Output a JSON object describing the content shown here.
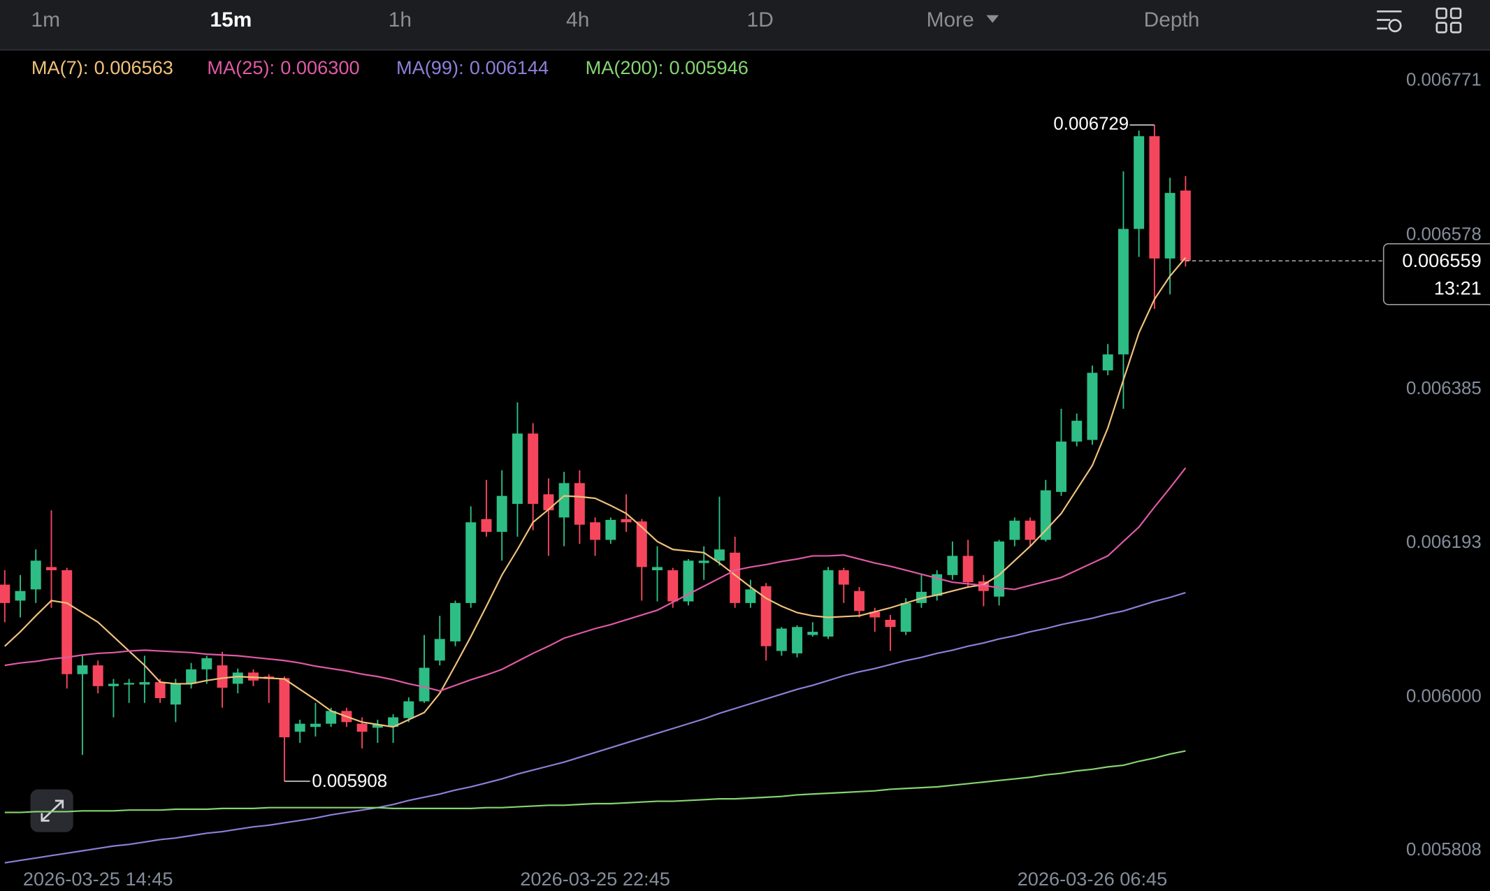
{
  "toolbar": {
    "tabs": [
      "1m",
      "15m",
      "1h",
      "4h",
      "1D",
      "More",
      "Depth"
    ],
    "active": 1
  },
  "chart_data": {
    "type": "candlestick",
    "categories": [
      null,
      null,
      null,
      null,
      null,
      null,
      "2026-03-25 14:45",
      null,
      null,
      null,
      null,
      null,
      null,
      null,
      null,
      null,
      null,
      null,
      null,
      null,
      null,
      null,
      null,
      null,
      null,
      null,
      null,
      null,
      null,
      null,
      null,
      null,
      null,
      null,
      null,
      null,
      null,
      null,
      "2026-03-25 22:45",
      null,
      null,
      null,
      null,
      null,
      null,
      null,
      null,
      null,
      null,
      null,
      null,
      null,
      null,
      null,
      null,
      null,
      null,
      null,
      null,
      null,
      null,
      null,
      null,
      null,
      null,
      null,
      null,
      null,
      null,
      null,
      "2026-03-26 06:45",
      null,
      null,
      null,
      null,
      null,
      null
    ],
    "open": [
      0.006154,
      0.006134,
      0.006148,
      0.006176,
      0.006172,
      0.006042,
      0.006053,
      0.006027,
      0.006029,
      0.006029,
      0.006032,
      0.006004,
      0.00603,
      0.006048,
      0.006053,
      0.00603,
      0.006044,
      0.006039,
      0.006037,
      0.00597,
      0.005976,
      0.00598,
      0.005996,
      0.00598,
      0.005975,
      0.005976,
      0.005987,
      0.006008,
      0.006059,
      0.006083,
      0.006131,
      0.006236,
      0.00622,
      0.006255,
      0.006343,
      0.006267,
      0.006238,
      0.006281,
      0.006232,
      0.00621,
      0.006236,
      0.006233,
      0.006172,
      0.006172,
      0.006133,
      0.006181,
      0.006184,
      0.006194,
      0.006131,
      0.006152,
      0.006071,
      0.006068,
      0.006091,
      0.006089,
      0.006172,
      0.006146,
      0.00612,
      0.00611,
      0.006095,
      0.006131,
      0.00614,
      0.006166,
      0.00619,
      0.006158,
      0.006139,
      0.00621,
      0.006234,
      0.00621,
      0.00627,
      0.006333,
      0.006335,
      0.006422,
      0.006442,
      0.006599,
      0.006715,
      0.006562,
      0.006647
    ],
    "high": [
      0.006172,
      0.006166,
      0.006198,
      0.006247,
      0.006175,
      0.006065,
      0.006059,
      0.006036,
      0.006036,
      0.006065,
      0.006036,
      0.006036,
      0.006056,
      0.006065,
      0.00607,
      0.006049,
      0.006048,
      0.006042,
      0.006039,
      0.005985,
      0.006006,
      0.006,
      0.006,
      0.005988,
      0.005985,
      0.005992,
      0.006013,
      0.006091,
      0.006115,
      0.006134,
      0.006252,
      0.006285,
      0.006297,
      0.006382,
      0.006356,
      0.006287,
      0.006295,
      0.006297,
      0.006238,
      0.006238,
      0.006267,
      0.006236,
      0.006202,
      0.006175,
      0.006186,
      0.006202,
      0.006264,
      0.006214,
      0.00616,
      0.006156,
      0.006101,
      0.006103,
      0.006107,
      0.006176,
      0.006175,
      0.006151,
      0.006125,
      0.006116,
      0.006137,
      0.006166,
      0.006172,
      0.006208,
      0.00621,
      0.006166,
      0.00621,
      0.006238,
      0.006238,
      0.006285,
      0.006374,
      0.006368,
      0.006428,
      0.006455,
      0.006671,
      0.006722,
      0.006729,
      0.006663,
      0.006665
    ],
    "low": [
      0.006107,
      0.006113,
      0.006131,
      0.006125,
      0.006024,
      0.005941,
      0.006018,
      0.005988,
      0.006006,
      0.006006,
      0.006006,
      0.005982,
      0.006024,
      0.00603,
      0.006,
      0.006018,
      0.006027,
      0.006006,
      0.005908,
      0.005956,
      0.005964,
      0.005976,
      0.005976,
      0.005949,
      0.005956,
      0.005956,
      0.005982,
      0.006006,
      0.006053,
      0.006077,
      0.006125,
      0.006214,
      0.006184,
      0.006214,
      0.006222,
      0.00619,
      0.006202,
      0.006205,
      0.00619,
      0.006205,
      0.00622,
      0.006134,
      0.006133,
      0.006125,
      0.006128,
      0.00616,
      0.006178,
      0.006125,
      0.006125,
      0.006059,
      0.006065,
      0.006063,
      0.006089,
      0.006086,
      0.006131,
      0.006113,
      0.006095,
      0.006071,
      0.006091,
      0.006125,
      0.006134,
      0.00616,
      0.006151,
      0.006127,
      0.006128,
      0.006202,
      0.006202,
      0.006208,
      0.006265,
      0.006327,
      0.006329,
      0.006416,
      0.006374,
      0.006564,
      0.006499,
      0.006517,
      0.006552
    ],
    "close": [
      0.006131,
      0.006146,
      0.006184,
      0.006172,
      0.006042,
      0.006053,
      0.006027,
      0.00603,
      0.006031,
      0.006032,
      0.006012,
      0.00603,
      0.006048,
      0.006062,
      0.006025,
      0.006044,
      0.006034,
      0.006036,
      0.005963,
      0.00598,
      0.00598,
      0.005996,
      0.005982,
      0.00597,
      0.005979,
      0.005988,
      0.006008,
      0.00605,
      0.006086,
      0.006131,
      0.006232,
      0.00622,
      0.006265,
      0.006343,
      0.006255,
      0.006247,
      0.006281,
      0.006229,
      0.00621,
      0.006235,
      0.006232,
      0.006176,
      0.006176,
      0.006133,
      0.006184,
      0.006184,
      0.006198,
      0.006131,
      0.006148,
      0.006077,
      0.006099,
      0.006101,
      0.006095,
      0.006172,
      0.006154,
      0.006121,
      0.006113,
      0.006101,
      0.006131,
      0.006145,
      0.006167,
      0.00619,
      0.006157,
      0.006146,
      0.006208,
      0.006234,
      0.00621,
      0.006272,
      0.006333,
      0.006359,
      0.006419,
      0.006442,
      0.006599,
      0.006715,
      0.006562,
      0.006644,
      0.006559
    ],
    "up_color": "#2ebd85",
    "down_color": "#f6465d",
    "series": [
      {
        "name": "MA(7):",
        "color": "#f0c27b",
        "values": [
          0.006077,
          0.006095,
          0.006115,
          0.006134,
          0.006131,
          0.006119,
          0.006107,
          0.006089,
          0.006071,
          0.006053,
          0.006032,
          0.00603,
          0.00603,
          0.006034,
          0.006037,
          0.006039,
          0.006038,
          0.006037,
          0.006036,
          0.006023,
          0.00601,
          0.005996,
          0.005989,
          0.005982,
          0.005979,
          0.005976,
          0.005985,
          0.005994,
          0.006018,
          0.006053,
          0.006089,
          0.006127,
          0.006166,
          0.006198,
          0.006232,
          0.006248,
          0.006265,
          0.006264,
          0.006262,
          0.006253,
          0.006243,
          0.006226,
          0.006208,
          0.006198,
          0.006196,
          0.006194,
          0.006181,
          0.006166,
          0.006151,
          0.006137,
          0.006127,
          0.006119,
          0.006115,
          0.006113,
          0.006114,
          0.006115,
          0.00612,
          0.006125,
          0.006131,
          0.006137,
          0.006141,
          0.006146,
          0.006151,
          0.006154,
          0.006166,
          0.006184,
          0.006202,
          0.006222,
          0.006243,
          0.006273,
          0.006303,
          0.00635,
          0.00641,
          0.006469,
          0.006511,
          0.00654,
          0.006563
        ]
      },
      {
        "name": "MA(25):",
        "color": "#e05aa6",
        "values": [
          0.006053,
          0.006056,
          0.006058,
          0.006061,
          0.006063,
          0.006066,
          0.006068,
          0.006069,
          0.006071,
          0.006072,
          0.006071,
          0.00607,
          0.006069,
          0.006067,
          0.006066,
          0.006065,
          0.006063,
          0.006061,
          0.006059,
          0.006056,
          0.006052,
          0.006049,
          0.006046,
          0.006042,
          0.006039,
          0.006035,
          0.00603,
          0.006026,
          0.006021,
          0.006028,
          0.006035,
          0.006041,
          0.006048,
          0.006058,
          0.006068,
          0.006077,
          0.006087,
          0.006093,
          0.006099,
          0.006104,
          0.00611,
          0.006116,
          0.006122,
          0.006132,
          0.006142,
          0.006152,
          0.006162,
          0.006172,
          0.006176,
          0.006179,
          0.006183,
          0.006186,
          0.00619,
          0.00619,
          0.006191,
          0.006186,
          0.006181,
          0.006177,
          0.006172,
          0.006167,
          0.006162,
          0.006157,
          0.006155,
          0.006153,
          0.00615,
          0.006148,
          0.006153,
          0.006158,
          0.006163,
          0.006172,
          0.006181,
          0.00619,
          0.006208,
          0.006226,
          0.006251,
          0.006275,
          0.0063
        ],
        "value_labels": [
          null,
          null,
          null,
          null,
          null,
          null,
          null,
          null,
          null,
          null,
          null,
          null,
          null,
          null,
          null,
          null,
          null,
          null,
          null,
          null,
          null,
          null,
          null,
          null,
          null,
          null,
          null,
          null,
          null,
          null,
          null,
          null,
          null,
          null,
          null,
          null,
          null,
          null,
          null,
          null,
          null,
          null,
          null,
          null,
          null,
          null,
          null,
          null,
          null,
          null,
          null,
          null,
          null,
          null,
          null,
          null,
          null,
          null,
          null,
          null,
          null,
          null,
          null,
          null,
          null,
          null,
          null,
          null,
          null,
          null,
          null,
          null,
          null,
          null,
          null,
          null,
          "0.006300"
        ]
      },
      {
        "name": "MA(99):",
        "color": "#8d80d8",
        "values": [
          0.005806,
          0.005809,
          0.005812,
          0.005815,
          0.005818,
          0.005821,
          0.005824,
          0.005827,
          0.005829,
          0.005832,
          0.005835,
          0.005837,
          0.00584,
          0.005843,
          0.005845,
          0.005848,
          0.005851,
          0.005853,
          0.005856,
          0.005859,
          0.005862,
          0.005866,
          0.005869,
          0.005872,
          0.005875,
          0.005879,
          0.005884,
          0.005888,
          0.005892,
          0.005897,
          0.005901,
          0.005906,
          0.005911,
          0.005917,
          0.005922,
          0.005927,
          0.005932,
          0.005938,
          0.005944,
          0.00595,
          0.005956,
          0.005962,
          0.005968,
          0.005974,
          0.00598,
          0.005986,
          0.005993,
          0.005999,
          0.006005,
          0.006011,
          0.006017,
          0.006023,
          0.006028,
          0.006034,
          0.00604,
          0.006045,
          0.006049,
          0.006054,
          0.006059,
          0.006063,
          0.006068,
          0.006072,
          0.006077,
          0.006081,
          0.006086,
          0.00609,
          0.006095,
          0.006099,
          0.006104,
          0.006108,
          0.006112,
          0.006117,
          0.006121,
          0.006127,
          0.006133,
          0.006138,
          0.006144
        ]
      },
      {
        "name": "MA(200):",
        "color": "#86d472",
        "values": [
          0.005869,
          0.005869,
          0.00587,
          0.00587,
          0.00587,
          0.005871,
          0.005871,
          0.005871,
          0.005872,
          0.005872,
          0.005872,
          0.005873,
          0.005873,
          0.005873,
          0.005874,
          0.005874,
          0.005874,
          0.005875,
          0.005875,
          0.005875,
          0.005875,
          0.005875,
          0.005875,
          0.005875,
          0.005875,
          0.005874,
          0.005874,
          0.005874,
          0.005874,
          0.005874,
          0.005874,
          0.005875,
          0.005875,
          0.005876,
          0.005877,
          0.005878,
          0.005878,
          0.005879,
          0.00588,
          0.00588,
          0.005881,
          0.005882,
          0.005883,
          0.005883,
          0.005884,
          0.005885,
          0.005886,
          0.005886,
          0.005887,
          0.005888,
          0.005889,
          0.005891,
          0.005892,
          0.005893,
          0.005894,
          0.005895,
          0.005896,
          0.005898,
          0.005899,
          0.0059,
          0.005901,
          0.005903,
          0.005905,
          0.005907,
          0.005909,
          0.005911,
          0.005913,
          0.005916,
          0.005918,
          0.005921,
          0.005923,
          0.005926,
          0.005928,
          0.005933,
          0.005937,
          0.005942,
          0.005946
        ]
      }
    ],
    "ylim": [
      0.005804,
      0.00682
    ],
    "yticks": [
      0.005808,
      {
        "value": 0.006,
        "label": "0.006000"
      },
      0.006193,
      0.006385,
      0.006578,
      0.006771
    ],
    "grid": false,
    "countdown": "13:21"
  }
}
